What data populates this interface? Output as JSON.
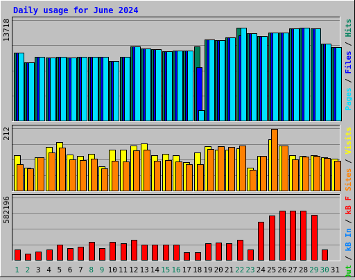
{
  "chart_data": {
    "type": "bar",
    "title": "Daily usage for June 2024",
    "categories": [
      "1",
      "2",
      "3",
      "4",
      "5",
      "6",
      "7",
      "8",
      "9",
      "10",
      "11",
      "12",
      "13",
      "14",
      "15",
      "16",
      "17",
      "18",
      "19",
      "20",
      "21",
      "22",
      "23",
      "24",
      "25",
      "26",
      "27",
      "28",
      "29",
      "30",
      "31"
    ],
    "weekend_days": [
      "1",
      "2",
      "8",
      "9",
      "15",
      "16",
      "22",
      "23",
      "29",
      "30"
    ],
    "colors": {
      "background": "#c0c0c0",
      "title": "#0000ff",
      "hits": "#00805c",
      "files": "#0000ff",
      "pages": "#00e0ff",
      "visits": "#ffff00",
      "sites": "#ff8000",
      "kb_f": "#ff0000",
      "kb_in": "#0080ff",
      "kb_out": "#00c000",
      "weekday_label": "#000000",
      "weekend_label": "#00805c"
    },
    "panels": [
      {
        "id": "requests",
        "max_label": "13718",
        "ylim": [
          0,
          13718
        ],
        "legend": [
          {
            "text": "Hits",
            "color": "#00805c"
          },
          {
            "text": "Files",
            "color": "#0000ff"
          },
          {
            "text": "Pages",
            "color": "#00e0ff"
          }
        ],
        "series": [
          {
            "name": "Hits",
            "color": "#00805c",
            "values": [
              9300,
              7920,
              8660,
              8600,
              8660,
              8600,
              8660,
              8660,
              8660,
              8180,
              8660,
              10080,
              9840,
              9700,
              9440,
              9560,
              9560,
              10140,
              11100,
              11000,
              11400,
              12680,
              11900,
              11500,
              12000,
              12000,
              12620,
              12720,
              12620,
              10480,
              10000
            ]
          },
          {
            "name": "Files",
            "color": "#0000ff",
            "values": [
              9300,
              7920,
              8660,
              8600,
              8660,
              8600,
              8660,
              8660,
              8660,
              8180,
              8660,
              10080,
              9840,
              9700,
              9440,
              9560,
              9560,
              7280,
              11100,
              11000,
              11400,
              11640,
              11900,
              11500,
              12000,
              12000,
              12620,
              12720,
              12620,
              10480,
              10000
            ]
          },
          {
            "name": "Pages",
            "color": "#00e0ff",
            "values": [
              9300,
              7920,
              8660,
              8600,
              8660,
              8600,
              8660,
              8660,
              8660,
              8180,
              8660,
              10080,
              9840,
              9700,
              9440,
              9560,
              9560,
              1460,
              11100,
              11000,
              11400,
              12680,
              11900,
              11500,
              12000,
              12000,
              12620,
              12720,
              12620,
              10480,
              10000
            ]
          }
        ]
      },
      {
        "id": "visits",
        "max_label": "212",
        "ylim": [
          0,
          212
        ],
        "legend": [
          {
            "text": "Visits",
            "color": "#ffff00"
          },
          {
            "text": "Sites",
            "color": "#ff8000"
          }
        ],
        "series": [
          {
            "name": "Visits",
            "color": "#ffff00",
            "values": [
              120,
              78,
              112,
              148,
              164,
              122,
              118,
              124,
              82,
              140,
              140,
              152,
              160,
              120,
              124,
              120,
              96,
              130,
              150,
              138,
              140,
              143,
              78,
              118,
              175,
              153,
              120,
              118,
              120,
              113,
              108
            ]
          },
          {
            "name": "Sites",
            "color": "#ff8000",
            "values": [
              90,
              75,
              112,
              130,
              146,
              105,
              104,
              108,
              75,
              102,
              100,
              136,
              139,
              102,
              104,
              99,
              90,
              89,
              142,
              150,
              148,
              152,
              70,
              118,
              210,
              153,
              107,
              116,
              117,
              111,
              102
            ]
          }
        ]
      },
      {
        "id": "kbytes",
        "max_label": "582196",
        "ylim": [
          0,
          582196
        ],
        "legend": [
          {
            "text": "kB F",
            "color": "#ff0000"
          },
          {
            "text": "kB In",
            "color": "#0080ff"
          },
          {
            "text": "kB Out",
            "color": "#00c000"
          }
        ],
        "series": [
          {
            "name": "kB F",
            "color": "#ff0000",
            "values": [
              95000,
              60000,
              80000,
              100000,
              140000,
              110000,
              125000,
              165000,
              110000,
              170000,
              155000,
              190000,
              145000,
              145000,
              140000,
              140000,
              70000,
              70000,
              155000,
              160000,
              155000,
              185000,
              95000,
              355000,
              417000,
              460000,
              460000,
              460000,
              420000,
              95000,
              0
            ]
          }
        ]
      }
    ]
  }
}
